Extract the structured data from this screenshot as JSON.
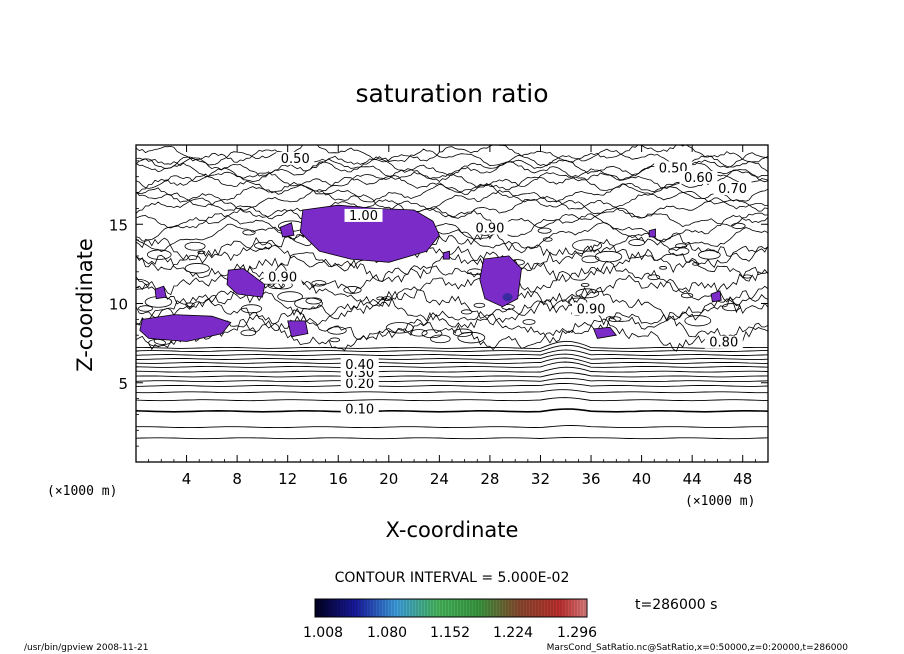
{
  "chart_data": {
    "type": "contour",
    "title": "saturation ratio",
    "xlabel": "X-coordinate",
    "ylabel": "Z-coordinate",
    "x_unit": "(×1000 m)",
    "y_unit": "(×1000 m)",
    "xlim": [
      0,
      50
    ],
    "ylim": [
      0,
      20
    ],
    "x_ticks": [
      4,
      8,
      12,
      16,
      20,
      24,
      28,
      32,
      36,
      40,
      44,
      48
    ],
    "y_ticks": [
      5,
      10,
      15
    ],
    "contour_interval_text": "CONTOUR INTERVAL = 5.000E-02",
    "time_text": "t=286000 s",
    "colorbar": {
      "ticks": [
        "1.008",
        "1.080",
        "1.152",
        "1.224",
        "1.296"
      ]
    },
    "contour_labels": [
      {
        "text": "0.10",
        "x": 17.7,
        "z": 3.2
      },
      {
        "text": "0.20",
        "x": 17.7,
        "z": 4.8
      },
      {
        "text": "0.30",
        "x": 17.7,
        "z": 5.5
      },
      {
        "text": "0.40",
        "x": 17.7,
        "z": 6.0
      },
      {
        "text": "0.50",
        "x": 12.6,
        "z": 19.0
      },
      {
        "text": "0.50",
        "x": 42.5,
        "z": 18.4
      },
      {
        "text": "0.60",
        "x": 44.5,
        "z": 17.8
      },
      {
        "text": "0.70",
        "x": 47.2,
        "z": 17.1
      },
      {
        "text": "0.80",
        "x": 46.5,
        "z": 7.4
      },
      {
        "text": "0.90",
        "x": 11.6,
        "z": 11.5
      },
      {
        "text": "0.90",
        "x": 28.0,
        "z": 14.6
      },
      {
        "text": "0.90",
        "x": 36.0,
        "z": 9.5
      },
      {
        "text": "1.00",
        "x": 18.0,
        "z": 15.4
      }
    ],
    "supersaturated_regions_color": "#7b2bc8"
  },
  "footer": {
    "left": "/usr/bin/gpview   2008-11-21",
    "right": "MarsCond_SatRatio.nc@SatRatio,x=0:50000,z=0:20000,t=286000"
  }
}
